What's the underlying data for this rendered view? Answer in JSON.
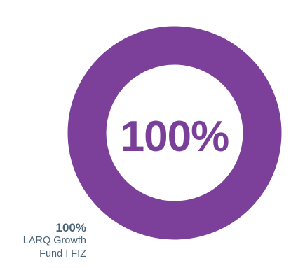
{
  "chart_data": {
    "type": "pie",
    "variant": "donut",
    "center_text": "100%",
    "series": [
      {
        "name": "LARQ Growth Fund I FIZ",
        "value": 100,
        "label": "100%",
        "color": "#7c3f9a"
      }
    ],
    "legend_placement": "bottom-left"
  },
  "legend": {
    "value": "100%",
    "name": "LARQ Growth Fund I FIZ"
  }
}
